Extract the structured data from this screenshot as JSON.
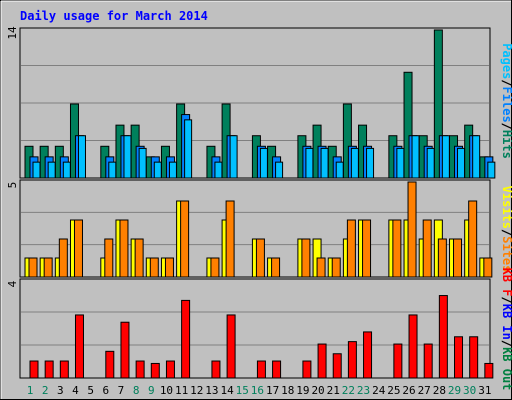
{
  "chart_data": {
    "type": "bar",
    "title": "Daily usage for March 2014",
    "categories": [
      "1",
      "2",
      "3",
      "4",
      "5",
      "6",
      "7",
      "8",
      "9",
      "10",
      "11",
      "12",
      "13",
      "14",
      "15",
      "16",
      "17",
      "18",
      "19",
      "20",
      "21",
      "22",
      "23",
      "24",
      "25",
      "26",
      "27",
      "28",
      "29",
      "30",
      "31"
    ],
    "weekend_categories": [
      "1",
      "2",
      "8",
      "9",
      "15",
      "16",
      "22",
      "23",
      "29",
      "30"
    ],
    "grid": true,
    "colors": {
      "hits": "#00805c",
      "files": "#0080ff",
      "pages": "#00c0ff",
      "visits": "#ffff00",
      "sites": "#ff8000",
      "kb_in": "#0000ff",
      "kb_out": "#008040",
      "kb_f": "#ff0000",
      "title": "#0000ff",
      "weekend_label": "#00805c",
      "weekday_label": "#000000"
    },
    "panels": [
      {
        "axis_max_label": "14",
        "ymax": 14,
        "ylabel": [
          "Pages",
          "/",
          "Files",
          "/",
          "Hits"
        ],
        "ylabel_colors": [
          "#00c0ff",
          "#000000",
          "#0080ff",
          "#000000",
          "#00805c"
        ],
        "series": [
          {
            "name": "Hits",
            "values": [
              3,
              3,
              3,
              7,
              0,
              3,
              5,
              5,
              2,
              3,
              7,
              0,
              3,
              7,
              0,
              4,
              3,
              0,
              4,
              5,
              3,
              7,
              5,
              0,
              4,
              10,
              4,
              14,
              4,
              5,
              2
            ]
          },
          {
            "name": "Files",
            "values": [
              2,
              2,
              2,
              4,
              0,
              2,
              4,
              3,
              2,
              2,
              6,
              0,
              2,
              4,
              0,
              3,
              2,
              0,
              3,
              3,
              2,
              3,
              3,
              0,
              3,
              4,
              3,
              4,
              3,
              4,
              2
            ]
          },
          {
            "name": "Pages",
            "values": [
              1.5,
              1.5,
              1.5,
              4,
              0,
              1.5,
              4,
              2.8,
              1.5,
              1.5,
              5.5,
              0,
              1.5,
              4,
              0,
              2.8,
              1.5,
              0,
              2.8,
              2.8,
              1.5,
              2.8,
              2.8,
              0,
              2.8,
              4,
              2.8,
              4,
              2.8,
              4,
              1.5
            ]
          }
        ]
      },
      {
        "axis_max_label": "5",
        "ymax": 5,
        "ylabel": [
          "Visits",
          "/",
          "Sites"
        ],
        "ylabel_colors": [
          "#ffff00",
          "#000000",
          "#ff8000"
        ],
        "series": [
          {
            "name": "Visits",
            "values": [
              1,
              1,
              1,
              3,
              0,
              1,
              3,
              2,
              1,
              1,
              4,
              0,
              1,
              3,
              0,
              2,
              1,
              0,
              2,
              2,
              1,
              2,
              3,
              0,
              3,
              3,
              2,
              3,
              2,
              3,
              1
            ]
          },
          {
            "name": "Sites",
            "values": [
              1,
              1,
              2,
              3,
              0,
              2,
              3,
              2,
              1,
              1,
              4,
              0,
              1,
              4,
              0,
              2,
              1,
              0,
              2,
              1,
              1,
              3,
              3,
              0,
              3,
              5,
              3,
              2,
              2,
              4,
              1
            ]
          }
        ]
      },
      {
        "axis_max_label": "4",
        "ymax": 4,
        "ylabel": [
          "KB F",
          "/",
          "KB In",
          "/",
          "KB Out"
        ],
        "ylabel_colors": [
          "#ff0000",
          "#000000",
          "#0000ff",
          "#000000",
          "#008040"
        ],
        "series": [
          {
            "name": "KB F",
            "values": [
              0.7,
              0.7,
              0.7,
              2.6,
              0,
              1.1,
              2.3,
              0.7,
              0.6,
              0.7,
              3.2,
              0,
              0.7,
              2.6,
              0,
              0.7,
              0.7,
              0,
              0.7,
              1.4,
              1.0,
              1.5,
              1.9,
              0,
              1.4,
              2.6,
              1.4,
              3.4,
              1.7,
              1.7,
              0.6
            ]
          }
        ]
      }
    ]
  }
}
